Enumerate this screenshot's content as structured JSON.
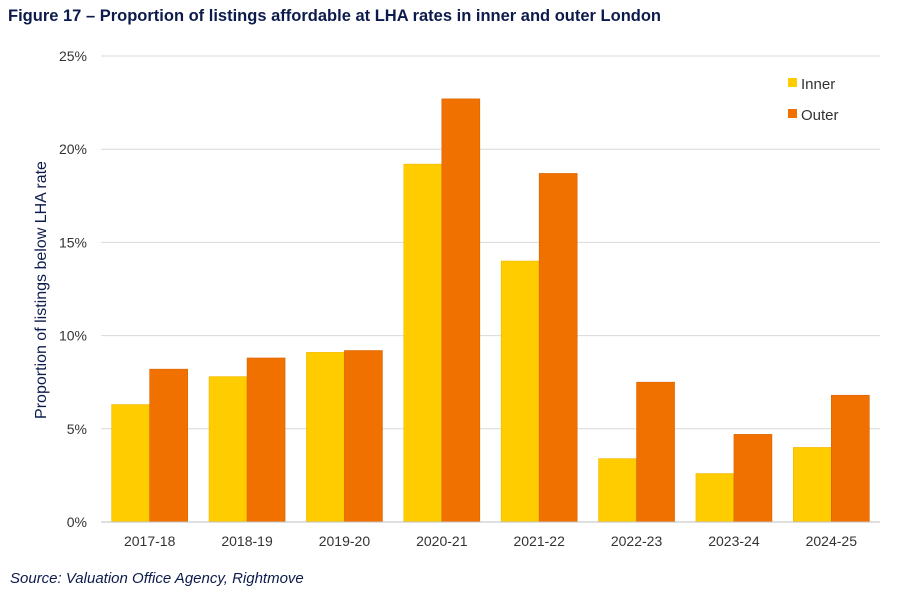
{
  "figure_title": "Figure 17 – Proportion of listings affordable at LHA rates in inner and outer London",
  "source_note": "Source: Valuation Office Agency, Rightmove",
  "colors": {
    "inner": "#FFCC00",
    "outer": "#F07100",
    "grid": "#d9d9d9",
    "axis": "#bfbfbf"
  },
  "chart_data": {
    "type": "bar",
    "title": "Figure 17 – Proportion of listings affordable at LHA rates in inner and outer London",
    "xlabel": "",
    "ylabel": "Proportion of listings below LHA rate",
    "ylim": [
      0,
      25
    ],
    "yticks": [
      0,
      5,
      10,
      15,
      20,
      25
    ],
    "ytick_labels": [
      "0%",
      "5%",
      "10%",
      "15%",
      "20%",
      "25%"
    ],
    "grid": true,
    "legend_position": "top-right",
    "categories": [
      "2017-18",
      "2018-19",
      "2019-20",
      "2020-21",
      "2021-22",
      "2022-23",
      "2023-24",
      "2024-25"
    ],
    "series": [
      {
        "name": "Inner",
        "values": [
          6.3,
          7.8,
          9.1,
          19.2,
          14.0,
          3.4,
          2.6,
          4.0
        ]
      },
      {
        "name": "Outer",
        "values": [
          8.2,
          8.8,
          9.2,
          22.7,
          18.7,
          7.5,
          4.7,
          6.8
        ]
      }
    ]
  }
}
